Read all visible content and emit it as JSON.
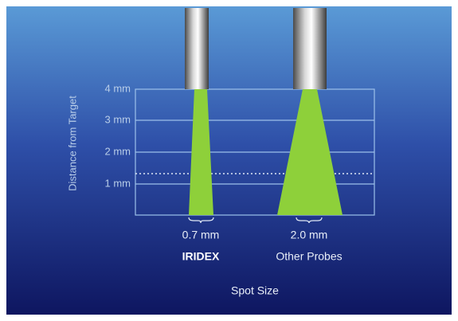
{
  "axis_title": "Distance from Target",
  "ticks": [
    "4 mm",
    "3 mm",
    "2 mm",
    "1 mm"
  ],
  "probes": [
    {
      "spot": "0.7 mm",
      "name": "IRIDEX"
    },
    {
      "spot": "2.0 mm",
      "name": "Other Probes"
    }
  ],
  "footer": "Spot Size"
}
